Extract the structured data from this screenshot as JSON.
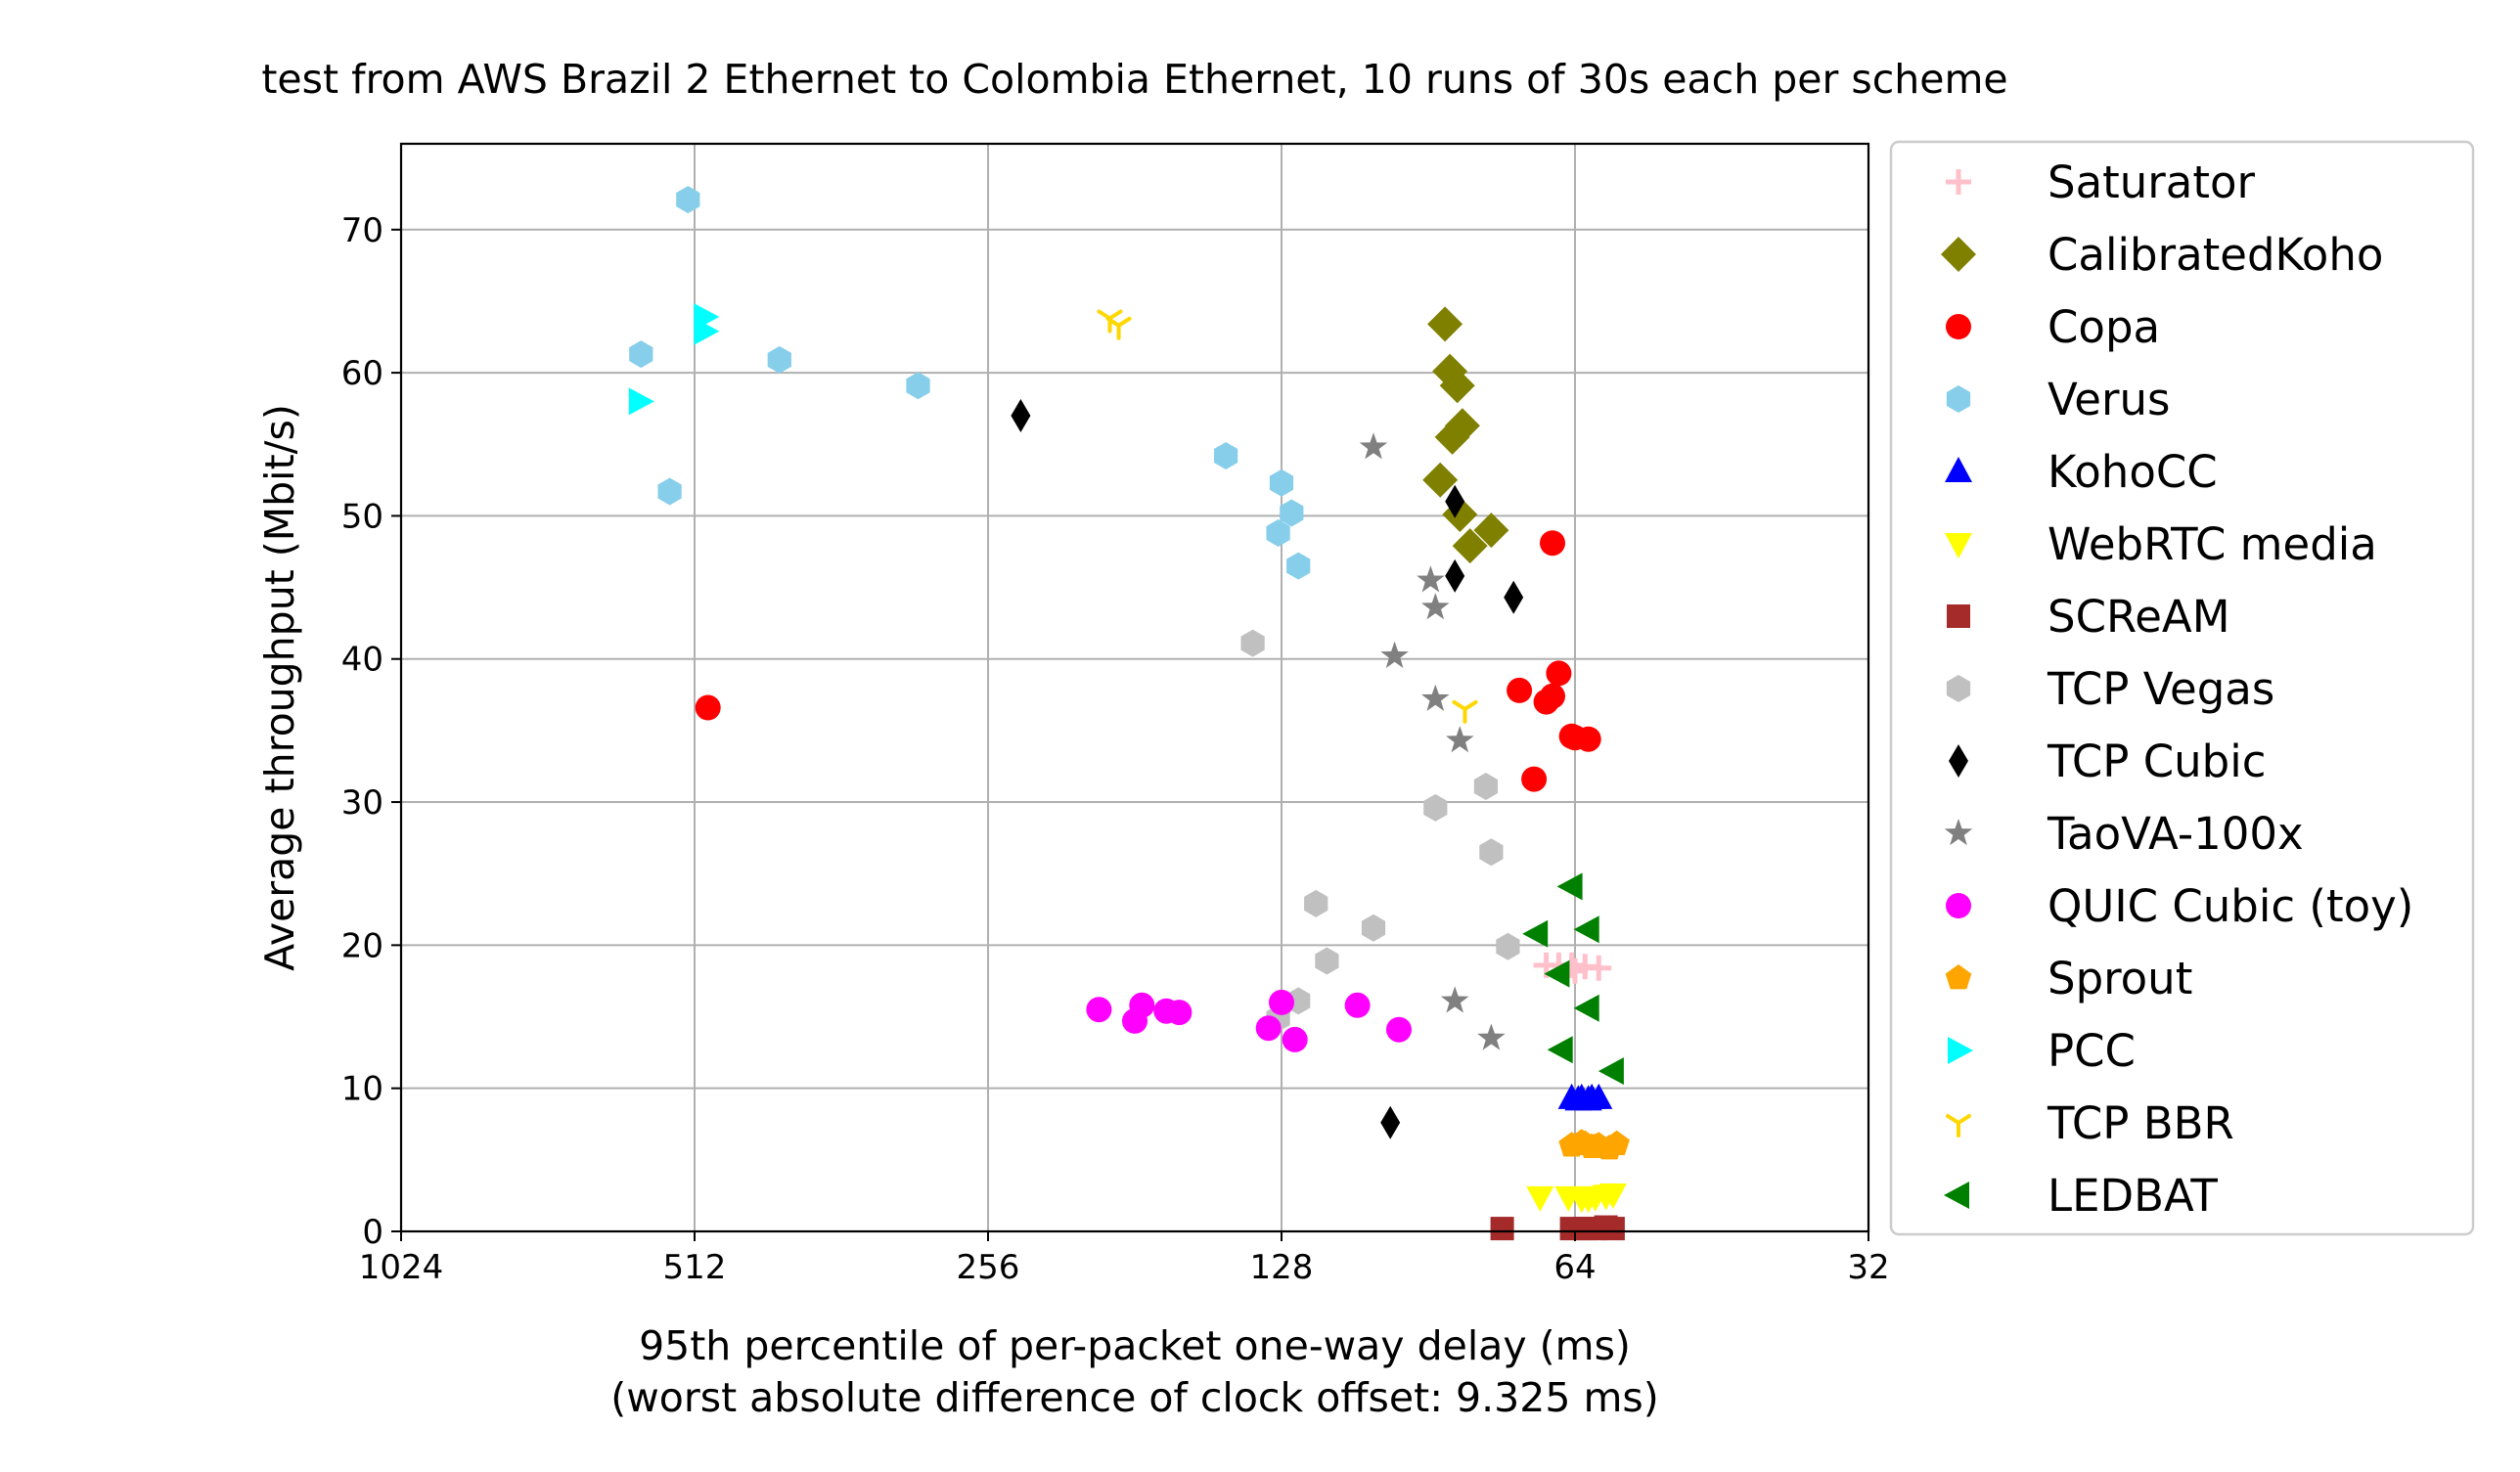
{
  "chart_data": {
    "type": "scatter",
    "title": "test from AWS Brazil 2 Ethernet to Colombia Ethernet, 10 runs of 30s each per scheme",
    "xlabel": "95th percentile of per-packet one-way delay (ms)",
    "xlabel2": "(worst absolute difference of clock offset: 9.325 ms)",
    "ylabel": "Average throughput (Mbit/s)",
    "x_scale": "log2",
    "x_inverted": true,
    "xlim": [
      1024,
      32
    ],
    "ylim": [
      0,
      76
    ],
    "grid": true,
    "legend_position": "outside-right",
    "x_ticks": [
      {
        "value": 1024,
        "label": "1024"
      },
      {
        "value": 512,
        "label": "512"
      },
      {
        "value": 256,
        "label": "256"
      },
      {
        "value": 128,
        "label": "128"
      },
      {
        "value": 64,
        "label": "64"
      },
      {
        "value": 32,
        "label": "32"
      }
    ],
    "y_ticks": [
      {
        "value": 0,
        "label": "0"
      },
      {
        "value": 10,
        "label": "10"
      },
      {
        "value": 20,
        "label": "20"
      },
      {
        "value": 30,
        "label": "30"
      },
      {
        "value": 40,
        "label": "40"
      },
      {
        "value": 50,
        "label": "50"
      },
      {
        "value": 60,
        "label": "60"
      },
      {
        "value": 70,
        "label": "70"
      }
    ],
    "series": [
      {
        "name": "Saturator",
        "marker": "plus",
        "color": "#ffc0cb",
        "points": [
          [
            68.5,
            18.6
          ],
          [
            66.5,
            18.6
          ],
          [
            64.5,
            18.6
          ],
          [
            62.5,
            18.5
          ],
          [
            60.5,
            18.4
          ],
          [
            64,
            18.2
          ]
        ]
      },
      {
        "name": "CalibratedKoho",
        "marker": "diamond",
        "color": "#808000",
        "points": [
          [
            87,
            63.4
          ],
          [
            86,
            60.1
          ],
          [
            84.5,
            59.1
          ],
          [
            85.5,
            55.5
          ],
          [
            83.5,
            56.3
          ],
          [
            88,
            52.5
          ],
          [
            84,
            50.1
          ],
          [
            82,
            47.9
          ],
          [
            78,
            49.0
          ]
        ]
      },
      {
        "name": "Copa",
        "marker": "circle",
        "color": "#ff0000",
        "points": [
          [
            496,
            36.6
          ],
          [
            67.5,
            48.1
          ],
          [
            66.5,
            39.0
          ],
          [
            73,
            37.8
          ],
          [
            68.5,
            37.0
          ],
          [
            67.5,
            37.4
          ],
          [
            64.5,
            34.6
          ],
          [
            62,
            34.4
          ],
          [
            64,
            34.5
          ],
          [
            70.5,
            31.6
          ]
        ]
      },
      {
        "name": "Verus",
        "marker": "hexagon",
        "color": "#87ceeb",
        "points": [
          [
            520,
            72.1
          ],
          [
            581,
            61.3
          ],
          [
            543,
            51.7
          ],
          [
            419,
            60.9
          ],
          [
            302,
            59.1
          ],
          [
            146,
            54.2
          ],
          [
            128,
            52.3
          ],
          [
            125,
            50.2
          ],
          [
            129,
            48.8
          ],
          [
            123,
            46.5
          ]
        ]
      },
      {
        "name": "KohoCC",
        "marker": "triangle-up",
        "color": "#0000ff",
        "points": [
          [
            64.5,
            9.3
          ],
          [
            63,
            9.3
          ],
          [
            61.5,
            9.3
          ],
          [
            60.5,
            9.3
          ],
          [
            62,
            9.2
          ],
          [
            63.5,
            9.2
          ]
        ]
      },
      {
        "name": "WebRTC media",
        "marker": "triangle-down",
        "color": "#ffff00",
        "points": [
          [
            69.5,
            2.4
          ],
          [
            65,
            2.4
          ],
          [
            63,
            2.3
          ],
          [
            61,
            2.4
          ],
          [
            59.5,
            2.5
          ],
          [
            58.5,
            2.6
          ],
          [
            62,
            2.3
          ]
        ]
      },
      {
        "name": "SCReAM",
        "marker": "square",
        "color": "#a52a2a",
        "points": [
          [
            76,
            0.2
          ],
          [
            64.5,
            0.2
          ],
          [
            61,
            0.2
          ],
          [
            59.5,
            0.3
          ],
          [
            62.5,
            0.2
          ],
          [
            58.5,
            0.2
          ]
        ]
      },
      {
        "name": "TCP Vegas",
        "marker": "hexagon",
        "color": "#c0c0c0",
        "points": [
          [
            137,
            41.1
          ],
          [
            89,
            29.6
          ],
          [
            79,
            31.1
          ],
          [
            78,
            26.5
          ],
          [
            118,
            22.9
          ],
          [
            103,
            21.2
          ],
          [
            115,
            18.9
          ],
          [
            75,
            19.9
          ],
          [
            123,
            16.1
          ],
          [
            129,
            14.9
          ]
        ]
      },
      {
        "name": "TCP Cubic",
        "marker": "thin-diamond",
        "color": "#000000",
        "points": [
          [
            237,
            57.0
          ],
          [
            85,
            51.0
          ],
          [
            85,
            45.8
          ],
          [
            74,
            44.3
          ],
          [
            99,
            7.6
          ]
        ]
      },
      {
        "name": "TaoVA-100x",
        "marker": "star",
        "color": "#808080",
        "points": [
          [
            103,
            54.8
          ],
          [
            90,
            45.5
          ],
          [
            89,
            43.6
          ],
          [
            98,
            40.2
          ],
          [
            89,
            37.2
          ],
          [
            84,
            34.3
          ],
          [
            85,
            16.1
          ],
          [
            78,
            13.5
          ]
        ]
      },
      {
        "name": "QUIC Cubic (toy)",
        "marker": "circle",
        "color": "#ff00ff",
        "points": [
          [
            197,
            15.5
          ],
          [
            181,
            14.7
          ],
          [
            178,
            15.8
          ],
          [
            168,
            15.4
          ],
          [
            163,
            15.3
          ],
          [
            128,
            16.0
          ],
          [
            132,
            14.2
          ],
          [
            124,
            13.4
          ],
          [
            107,
            15.8
          ],
          [
            97,
            14.1
          ]
        ]
      },
      {
        "name": "Sprout",
        "marker": "pentagon",
        "color": "#ffa500",
        "points": [
          [
            64.5,
            6.0
          ],
          [
            63,
            6.2
          ],
          [
            61.5,
            5.9
          ],
          [
            62.5,
            6.1
          ],
          [
            60.5,
            6.0
          ],
          [
            59,
            5.8
          ],
          [
            58,
            6.1
          ],
          [
            61,
            5.9
          ]
        ]
      },
      {
        "name": "PCC",
        "marker": "triangle-right",
        "color": "#00ffff",
        "points": [
          [
            500,
            63.9
          ],
          [
            500,
            62.9
          ],
          [
            583,
            58.0
          ]
        ]
      },
      {
        "name": "TCP BBR",
        "marker": "tri-down",
        "color": "#ffd700",
        "points": [
          [
            192,
            63.8
          ],
          [
            188,
            63.3
          ],
          [
            83,
            36.5
          ]
        ]
      },
      {
        "name": "LEDBAT",
        "marker": "triangle-left",
        "color": "#008000",
        "points": [
          [
            64.5,
            24.1
          ],
          [
            62,
            21.1
          ],
          [
            70,
            20.8
          ],
          [
            66.5,
            18.0
          ],
          [
            62,
            15.6
          ],
          [
            66,
            12.7
          ],
          [
            58.5,
            11.2
          ]
        ]
      }
    ]
  }
}
